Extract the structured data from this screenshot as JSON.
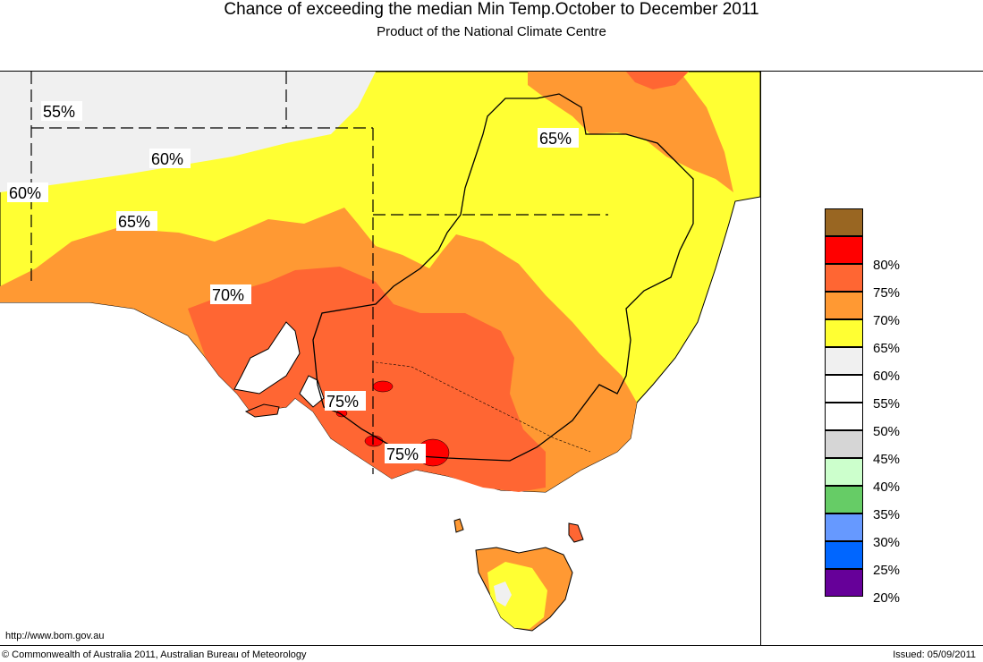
{
  "header": {
    "title": "Chance of exceeding the median Min Temp.October to December 2011",
    "subtitle": "Product of the National Climate Centre"
  },
  "map": {
    "labels": {
      "l55": "55%",
      "l60a": "60%",
      "l60b": "60%",
      "l65a": "65%",
      "l65b": "65%",
      "l70": "70%",
      "l75a": "75%",
      "l75b": "75%"
    },
    "colors": {
      "c55": "#f0f0f0",
      "c60": "#ffff33",
      "c65": "#ff9933",
      "c70": "#ff6633",
      "c75": "#ff0000",
      "ocean": "#ffffff"
    }
  },
  "legend": {
    "items": [
      {
        "label": "",
        "color": "#996622"
      },
      {
        "label": "80%",
        "color": "#ff0000"
      },
      {
        "label": "75%",
        "color": "#ff6633"
      },
      {
        "label": "70%",
        "color": "#ff9933"
      },
      {
        "label": "65%",
        "color": "#ffff33"
      },
      {
        "label": "60%",
        "color": "#f0f0f0"
      },
      {
        "label": "55%",
        "color": "#ffffff"
      },
      {
        "label": "50%",
        "color": "#ffffff"
      },
      {
        "label": "45%",
        "color": "#d6d6d6"
      },
      {
        "label": "40%",
        "color": "#ccffcc"
      },
      {
        "label": "35%",
        "color": "#66cc66"
      },
      {
        "label": "30%",
        "color": "#6699ff"
      },
      {
        "label": "25%",
        "color": "#0066ff"
      },
      {
        "label": "20%",
        "color": "#660099"
      }
    ]
  },
  "footer": {
    "url": "http://www.bom.gov.au",
    "copyright": "© Commonwealth of Australia 2011, Australian Bureau of Meteorology",
    "issued": "Issued: 05/09/2011"
  }
}
